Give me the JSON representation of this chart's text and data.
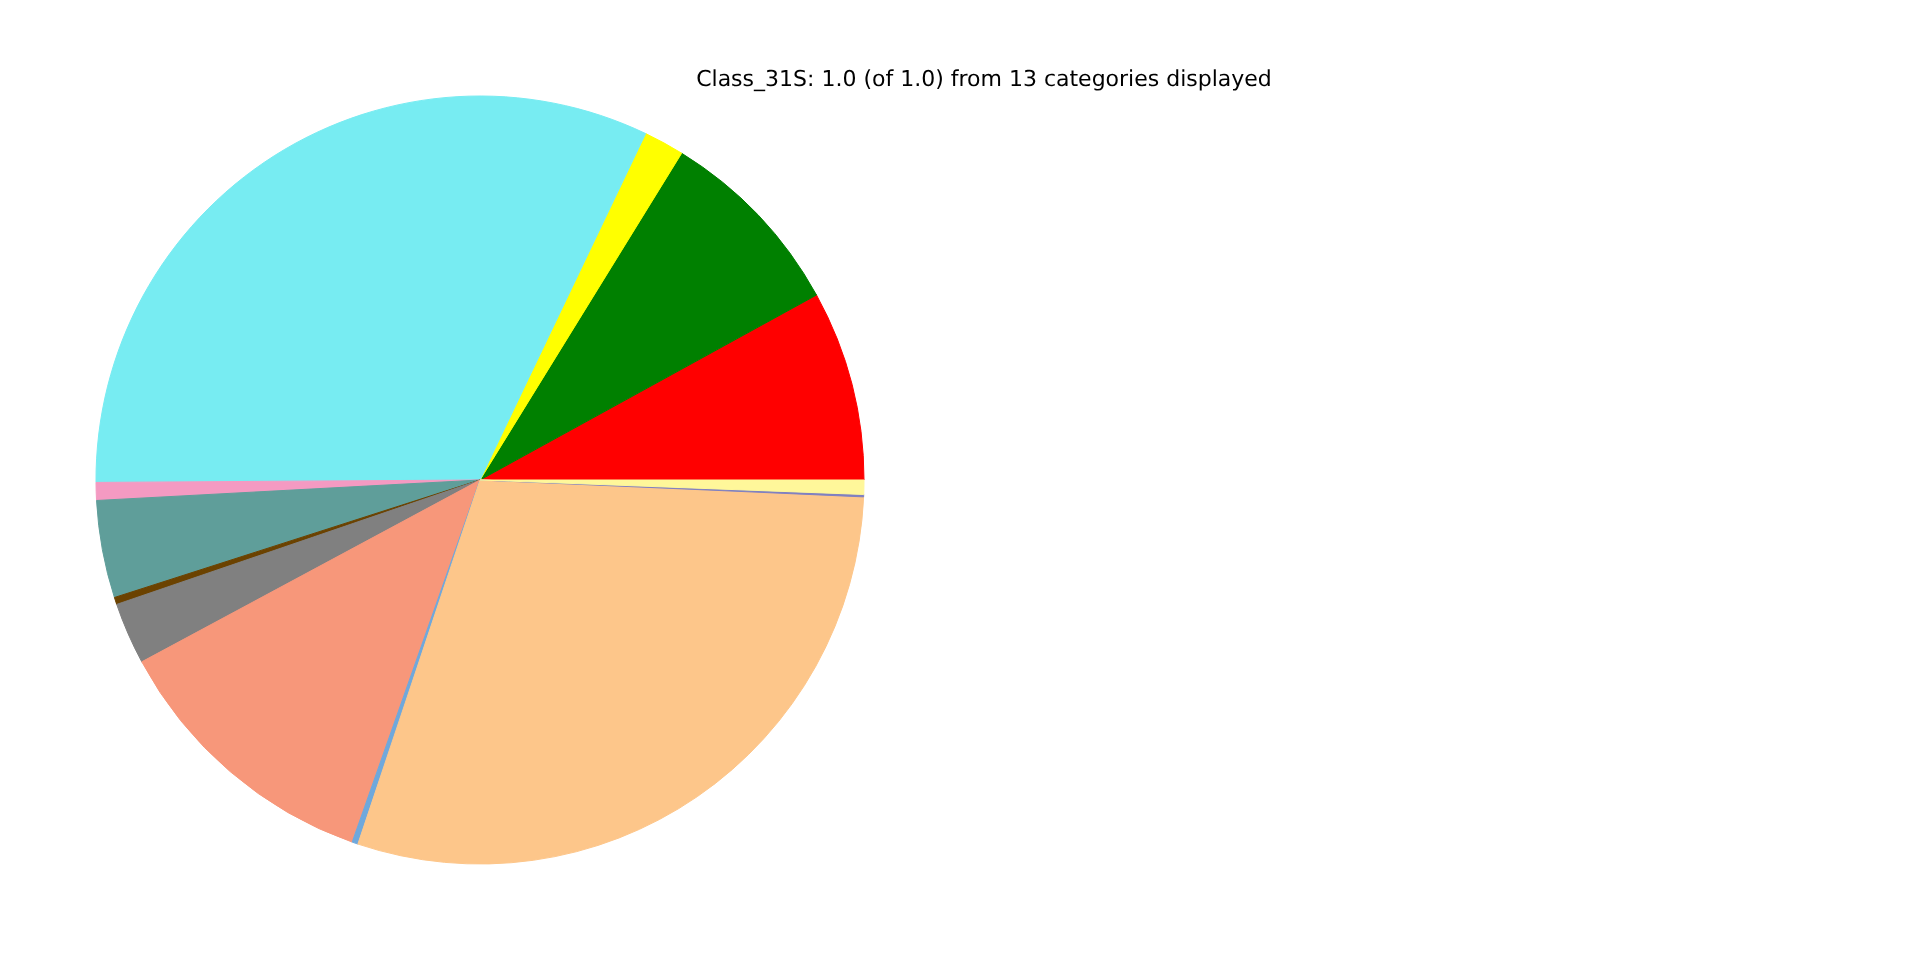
{
  "chart_data": {
    "type": "pie",
    "title": "Class_31S: 1.0 (of 1.0) from 13 categories displayed",
    "categories": [
      null,
      null,
      null,
      null,
      null,
      null,
      null,
      null,
      null,
      null,
      null,
      null,
      null
    ],
    "values": [
      8,
      8.2,
      1.7,
      32.2,
      0.75,
      4.1,
      0.3,
      2.6,
      11.75,
      0.25,
      29.45,
      0.1,
      0.6
    ],
    "colors": [
      "#ff0000",
      "#008000",
      "#ffff00",
      "#77ecf2",
      "#f49ac2",
      "#5f9e9a",
      "#6b4200",
      "#808080",
      "#f7977a",
      "#6fa8dc",
      "#fdc68a",
      "#8080c0",
      "#fff79a"
    ],
    "legend": false
  }
}
